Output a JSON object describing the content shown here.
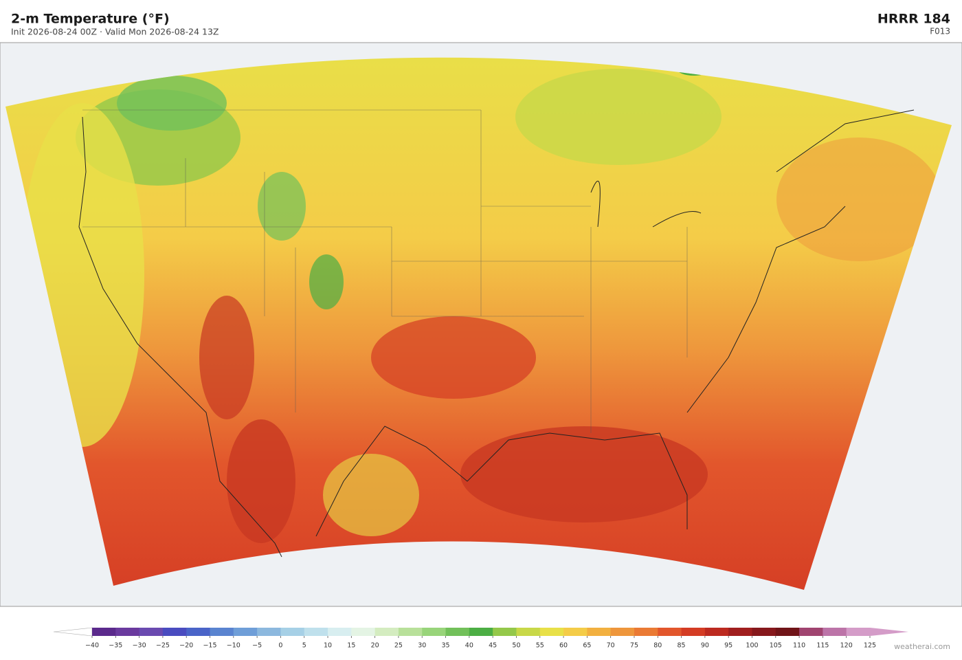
{
  "header": {
    "title": "2-m Temperature  (°F)",
    "subtitle": "Init 2026-08-24 00Z  ·  Valid Mon 2026-08-24 13Z",
    "model": "HRRR  184",
    "forecast_hour": "F013"
  },
  "colorbar": {
    "ticks": [
      {
        "value": -40,
        "label": "−40"
      },
      {
        "value": -35,
        "label": "−35"
      },
      {
        "value": -30,
        "label": "−30"
      },
      {
        "value": -25,
        "label": "−25"
      },
      {
        "value": -20,
        "label": "−20"
      },
      {
        "value": -15,
        "label": "−15"
      },
      {
        "value": -10,
        "label": "−10"
      },
      {
        "value": -5,
        "label": "−5"
      },
      0,
      5,
      10,
      15,
      20,
      25,
      30,
      35,
      40,
      45,
      50,
      55,
      60,
      65,
      70,
      75,
      80,
      85,
      90,
      95,
      100,
      105,
      110,
      115,
      120,
      125
    ],
    "colors": [
      "#5b2a8c",
      "#6a3a9e",
      "#6a4ab0",
      "#4a4cc0",
      "#4a64c8",
      "#5a84d0",
      "#6f9ed8",
      "#8cb8de",
      "#a6d0e6",
      "#bfe0ec",
      "#d8eef0",
      "#e4f4e4",
      "#d4ecc0",
      "#b8e09a",
      "#98d47a",
      "#72c05a",
      "#4cae44",
      "#94c84a",
      "#c8d848",
      "#e8e048",
      "#f4cc48",
      "#f2b040",
      "#ee963c",
      "#ea7a34",
      "#e2562c",
      "#d43c24",
      "#bc2a20",
      "#a01e1e",
      "#86181c",
      "#701418",
      "#a04470",
      "#bc74a8",
      "#d49cc8"
    ]
  },
  "credit": "weatherai.com"
}
